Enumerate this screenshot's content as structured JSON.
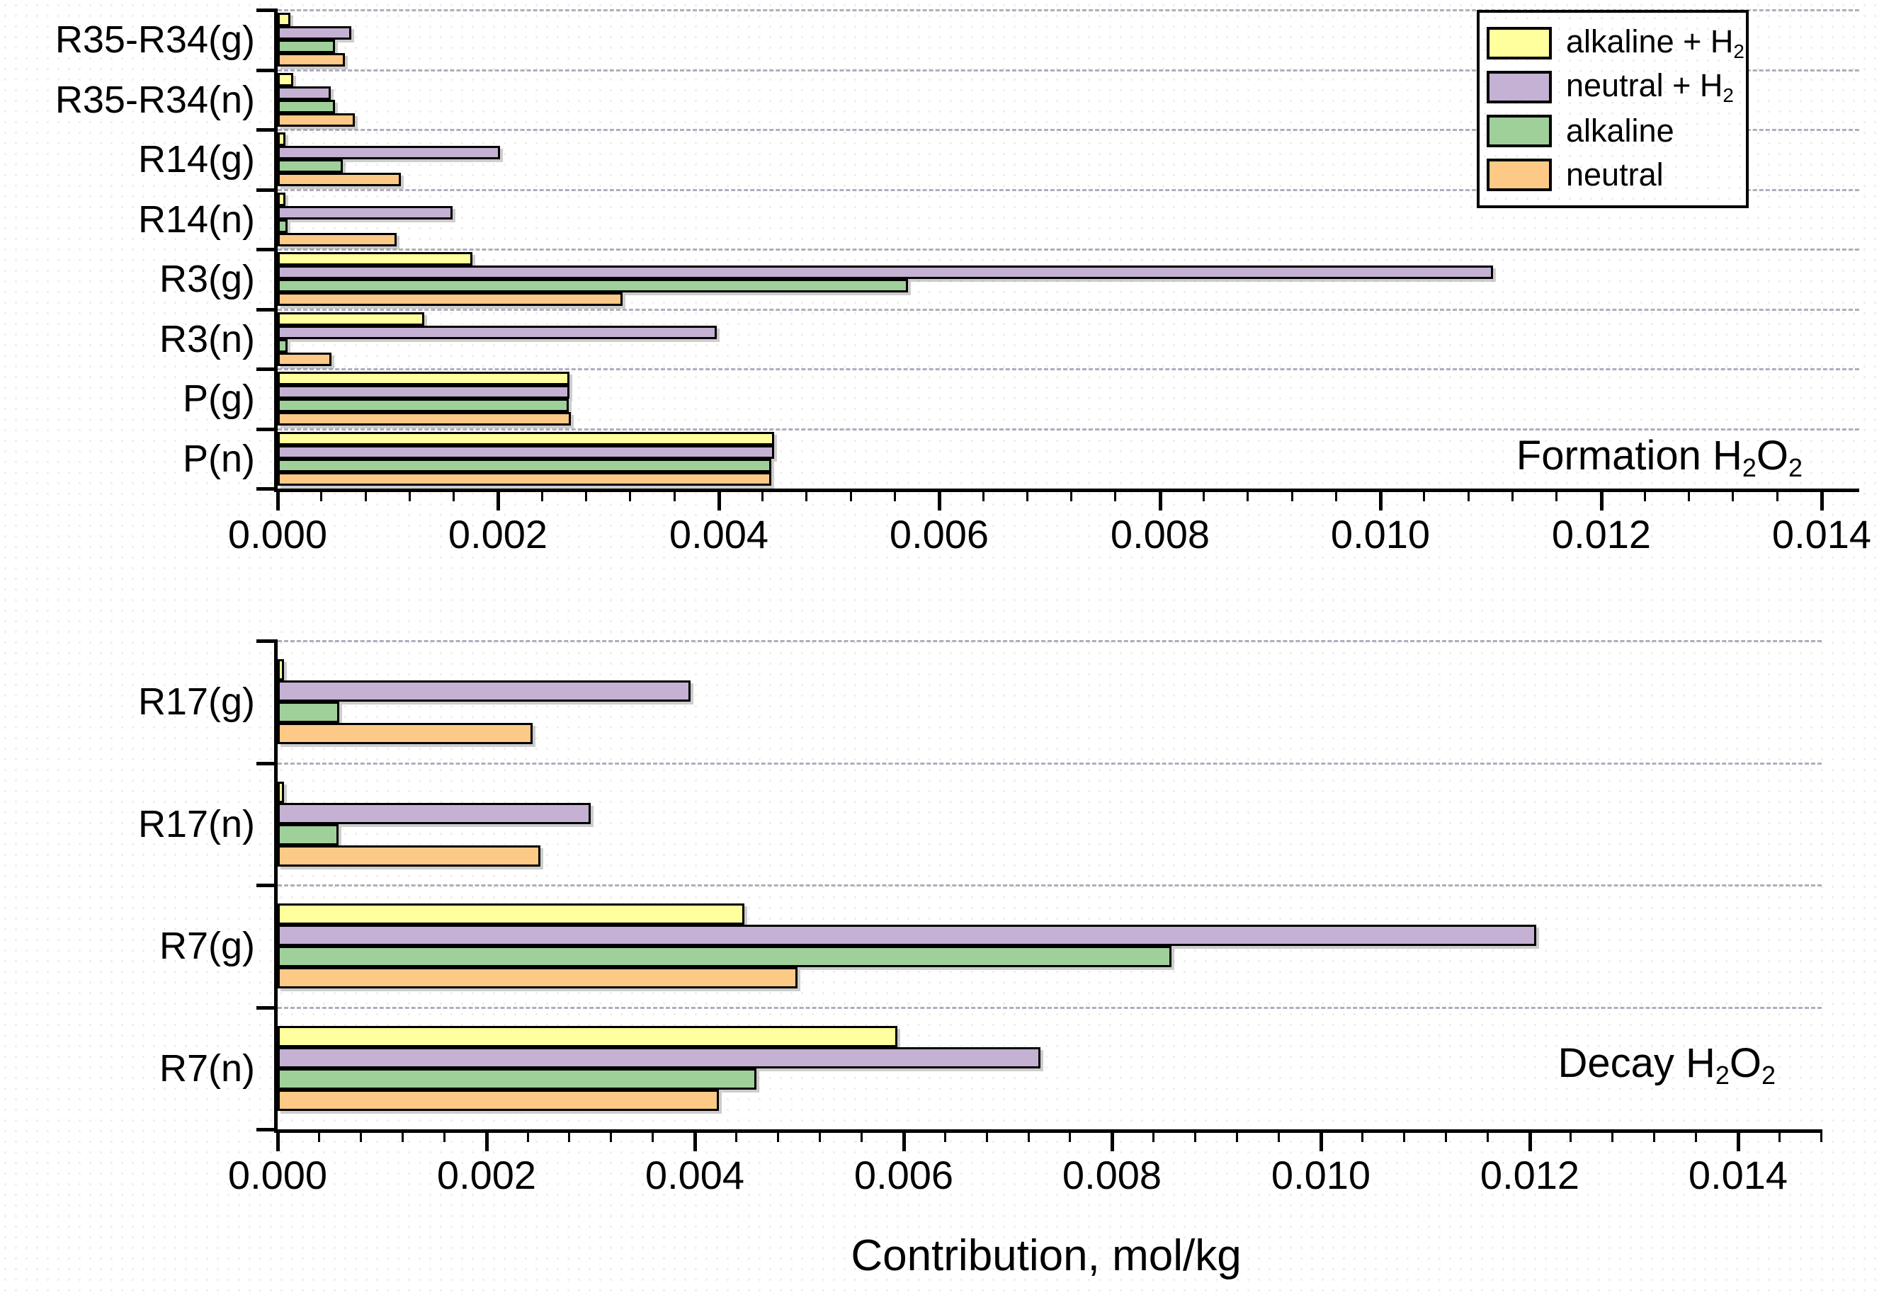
{
  "figure": {
    "xlabel": "Contribution, mol/kg"
  },
  "series_colors": {
    "alkaline_h2": "#FFFF9E",
    "neutral_h2": "#C4B1D4",
    "alkaline": "#9FD09A",
    "neutral": "#FCC987"
  },
  "legend": {
    "items": [
      {
        "key": "alkaline_h2",
        "color": "#FFFF9E",
        "label_parts": [
          {
            "t": "alkaline + H"
          },
          {
            "t": "2",
            "sub": true
          }
        ]
      },
      {
        "key": "neutral_h2",
        "color": "#C4B1D4",
        "label_parts": [
          {
            "t": "neutral + H"
          },
          {
            "t": "2",
            "sub": true
          }
        ]
      },
      {
        "key": "alkaline",
        "color": "#9FD09A",
        "label_parts": [
          {
            "t": "alkaline"
          }
        ]
      },
      {
        "key": "neutral",
        "color": "#FCC987",
        "label_parts": [
          {
            "t": "neutral"
          }
        ]
      }
    ]
  },
  "chart_data": [
    {
      "type": "bar",
      "orientation": "horizontal",
      "title": "Formation H2O2",
      "title_parts": [
        {
          "t": "Formation H"
        },
        {
          "t": "2",
          "sub": true
        },
        {
          "t": "O"
        },
        {
          "t": "2",
          "sub": true
        }
      ],
      "categories": [
        "R35-R34(g)",
        "R35-R34(n)",
        "R14(g)",
        "R14(n)",
        "R3(g)",
        "R3(n)",
        "P(g)",
        "P(n)"
      ],
      "series": [
        {
          "name": "alkaline + H2",
          "key": "alkaline_h2",
          "color": "#FFFF9E",
          "values": [
            8e-05,
            0.0001,
            3e-05,
            3e-05,
            0.00173,
            0.00129,
            0.00261,
            0.00446
          ]
        },
        {
          "name": "neutral + H2",
          "key": "neutral_h2",
          "color": "#C4B1D4",
          "values": [
            0.00063,
            0.00044,
            0.00198,
            0.00155,
            0.01098,
            0.00394,
            0.00261,
            0.00446
          ]
        },
        {
          "name": "alkaline",
          "key": "alkaline",
          "color": "#9FD09A",
          "values": [
            0.00048,
            0.00048,
            0.00055,
            5e-05,
            0.00568,
            5e-05,
            0.0026,
            0.00444
          ]
        },
        {
          "name": "neutral",
          "key": "neutral",
          "color": "#FCC987",
          "values": [
            0.00057,
            0.00066,
            0.00108,
            0.00104,
            0.00309,
            0.00045,
            0.00262,
            0.00444
          ]
        }
      ],
      "xlim": [
        0,
        0.01434
      ],
      "xticks": [
        0,
        0.002,
        0.004,
        0.006,
        0.008,
        0.01,
        0.012,
        0.014
      ],
      "xtick_labels": [
        "0.000",
        "0.002",
        "0.004",
        "0.006",
        "0.008",
        "0.010",
        "0.012",
        "0.014"
      ],
      "minor_step": 0.0004,
      "grid": "dashed horizontal at group boundaries",
      "xlabel": ""
    },
    {
      "type": "bar",
      "orientation": "horizontal",
      "title": "Decay H2O2",
      "title_parts": [
        {
          "t": "Decay H"
        },
        {
          "t": "2",
          "sub": true
        },
        {
          "t": "O"
        },
        {
          "t": "2",
          "sub": true
        }
      ],
      "categories": [
        "R17(g)",
        "R17(n)",
        "R7(g)",
        "R7(n)"
      ],
      "series": [
        {
          "name": "alkaline + H2",
          "key": "alkaline_h2",
          "color": "#FFFF9E",
          "values": [
            2e-05,
            2e-05,
            0.00443,
            0.0059
          ]
        },
        {
          "name": "neutral + H2",
          "key": "neutral_h2",
          "color": "#C4B1D4",
          "values": [
            0.00392,
            0.00296,
            0.01202,
            0.00727
          ]
        },
        {
          "name": "alkaline",
          "key": "alkaline",
          "color": "#9FD09A",
          "values": [
            0.00055,
            0.00054,
            0.00853,
            0.00455
          ]
        },
        {
          "name": "neutral",
          "key": "neutral",
          "color": "#FCC987",
          "values": [
            0.0024,
            0.00248,
            0.00494,
            0.00419
          ]
        }
      ],
      "xlim": [
        0,
        0.0148
      ],
      "xticks": [
        0,
        0.002,
        0.004,
        0.006,
        0.008,
        0.01,
        0.012,
        0.014
      ],
      "xtick_labels": [
        "0.000",
        "0.002",
        "0.004",
        "0.006",
        "0.008",
        "0.010",
        "0.012",
        "0.014"
      ],
      "minor_step": 0.0004,
      "grid": "dashed horizontal at group boundaries",
      "xlabel": "Contribution, mol/kg"
    }
  ]
}
